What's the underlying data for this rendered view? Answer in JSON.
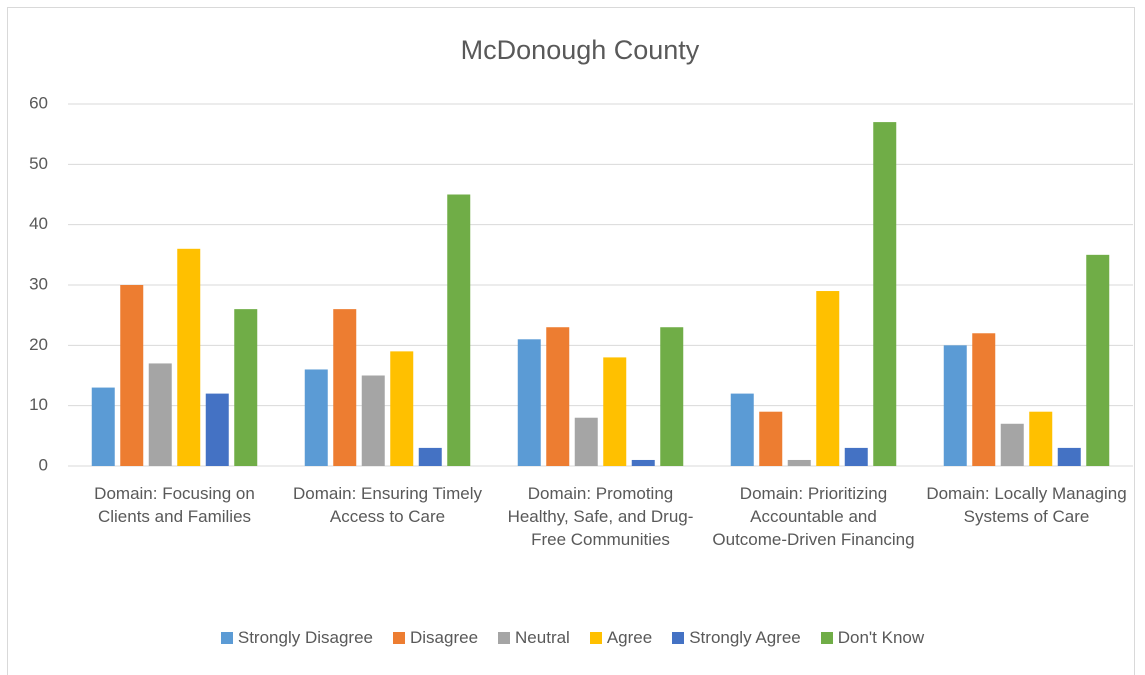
{
  "chart_data": {
    "type": "bar",
    "title": "McDonough County",
    "categories": [
      "Domain: Focusing on Clients and Families",
      "Domain: Ensuring Timely Access to Care",
      "Domain: Promoting Healthy, Safe, and Drug-Free Communities",
      "Domain: Prioritizing Accountable and Outcome-Driven Financing",
      "Domain: Locally Managing Systems of Care"
    ],
    "series": [
      {
        "name": "Strongly Disagree",
        "color": "#5b9bd5",
        "values": [
          13,
          16,
          21,
          12,
          20
        ]
      },
      {
        "name": "Disagree",
        "color": "#ed7d31",
        "values": [
          30,
          26,
          23,
          9,
          22
        ]
      },
      {
        "name": "Neutral",
        "color": "#a5a5a5",
        "values": [
          17,
          15,
          8,
          1,
          7
        ]
      },
      {
        "name": "Agree",
        "color": "#ffc000",
        "values": [
          36,
          19,
          18,
          29,
          9
        ]
      },
      {
        "name": "Strongly Agree",
        "color": "#4472c4",
        "values": [
          12,
          3,
          1,
          3,
          3
        ]
      },
      {
        "name": "Don't Know",
        "color": "#70ad47",
        "values": [
          26,
          45,
          23,
          57,
          35
        ]
      }
    ],
    "ylim": [
      0,
      60
    ],
    "yticks": [
      0,
      10,
      20,
      30,
      40,
      50,
      60
    ],
    "grid": true,
    "legend": "bottom"
  }
}
